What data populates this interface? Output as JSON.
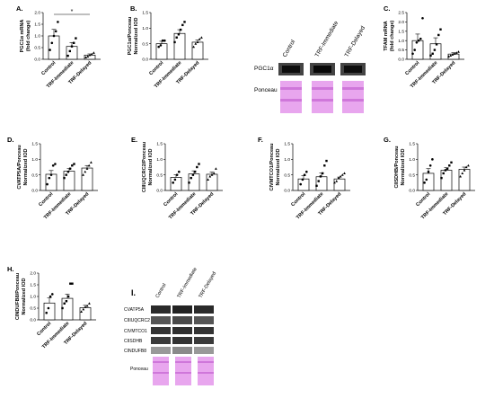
{
  "chart_data": [
    {
      "type": "bar",
      "panel_label": "A.",
      "ylabel_lines": [
        "PGC1α mRNA",
        "(fold change)"
      ],
      "categories": [
        "Control",
        "TRF-Immediate",
        "TRF-Delayed"
      ],
      "values": [
        1.0,
        0.55,
        0.18
      ],
      "errors": [
        0.28,
        0.17,
        0.05
      ],
      "ylim": [
        0,
        2.0
      ],
      "yticks": [
        "0.0",
        "0.5",
        "1.0",
        "1.5",
        "2.0"
      ],
      "points": [
        [
          0.4,
          0.7,
          1.0,
          1.2,
          1.6
        ],
        [
          0.15,
          0.35,
          0.55,
          0.7,
          0.9
        ],
        [
          0.08,
          0.12,
          0.18,
          0.22,
          0.28
        ]
      ],
      "significance": {
        "from": 0,
        "to": 2,
        "label": "*"
      }
    },
    {
      "type": "bar",
      "panel_label": "B.",
      "ylabel_lines": [
        "PGC1α/Ponceau",
        "Normalized IOD"
      ],
      "categories": [
        "Control",
        "TRF-Immediate",
        "TRF-Delayed"
      ],
      "values": [
        0.5,
        0.83,
        0.55
      ],
      "errors": [
        0.08,
        0.12,
        0.07
      ],
      "ylim": [
        0,
        1.5
      ],
      "yticks": [
        "0.0",
        "0.5",
        "1.0",
        "1.5"
      ],
      "points": [
        [
          0.4,
          0.45,
          0.6,
          0.6
        ],
        [
          0.55,
          0.7,
          0.8,
          0.95,
          1.1,
          1.2
        ],
        [
          0.4,
          0.5,
          0.55,
          0.65,
          0.7
        ]
      ]
    },
    {
      "type": "bar",
      "panel_label": "C.",
      "ylabel_lines": [
        "TFAM mRNA",
        "(fold change)"
      ],
      "categories": [
        "Control",
        "TRF-Immediate",
        "TRF-Delayed"
      ],
      "values": [
        1.0,
        0.83,
        0.28
      ],
      "errors": [
        0.35,
        0.32,
        0.07
      ],
      "ylim": [
        0,
        2.5
      ],
      "yticks": [
        "0.0",
        "0.5",
        "1.0",
        "1.5",
        "2.0",
        "2.5"
      ],
      "points": [
        [
          0.3,
          0.5,
          0.9,
          1.0,
          1.1,
          2.2
        ],
        [
          0.2,
          0.3,
          0.5,
          0.8,
          1.3,
          1.6
        ],
        [
          0.15,
          0.2,
          0.25,
          0.3,
          0.35,
          0.4
        ]
      ]
    },
    {
      "type": "bar",
      "panel_label": "D.",
      "ylabel_lines": [
        "CVATP5A/Ponceau",
        "Normalized IOD"
      ],
      "categories": [
        "Control",
        "TRF-Immediate",
        "TRF-Delayed"
      ],
      "values": [
        0.52,
        0.62,
        0.72
      ],
      "errors": [
        0.12,
        0.08,
        0.08
      ],
      "ylim": [
        0,
        1.5
      ],
      "yticks": [
        "0.0",
        "0.5",
        "1.0",
        "1.5"
      ],
      "points": [
        [
          0.2,
          0.4,
          0.5,
          0.8,
          0.85
        ],
        [
          0.4,
          0.5,
          0.6,
          0.7,
          0.8,
          0.85
        ],
        [
          0.5,
          0.6,
          0.7,
          0.8,
          0.9
        ]
      ]
    },
    {
      "type": "bar",
      "panel_label": "E.",
      "ylabel_lines": [
        "CIIIUQCRC2/Ponceau",
        "Normalized IOD"
      ],
      "categories": [
        "Control",
        "TRF-Immediate",
        "TRF-Delayed"
      ],
      "values": [
        0.42,
        0.53,
        0.52
      ],
      "errors": [
        0.08,
        0.1,
        0.07
      ],
      "ylim": [
        0,
        1.5
      ],
      "yticks": [
        "0.0",
        "0.5",
        "1.0",
        "1.5"
      ],
      "points": [
        [
          0.25,
          0.35,
          0.5,
          0.6
        ],
        [
          0.25,
          0.4,
          0.5,
          0.6,
          0.75,
          0.85
        ],
        [
          0.35,
          0.45,
          0.5,
          0.55,
          0.7
        ]
      ]
    },
    {
      "type": "bar",
      "panel_label": "F.",
      "ylabel_lines": [
        "CIVMTCO1/Ponceau",
        "Normalized IOD"
      ],
      "categories": [
        "Control",
        "TRF-Immediate",
        "TRF-Delayed"
      ],
      "values": [
        0.37,
        0.44,
        0.37
      ],
      "errors": [
        0.1,
        0.12,
        0.06
      ],
      "ylim": [
        0,
        1.5
      ],
      "yticks": [
        "0.0",
        "0.5",
        "1.0",
        "1.5"
      ],
      "points": [
        [
          0.2,
          0.35,
          0.5,
          0.6
        ],
        [
          0.15,
          0.3,
          0.45,
          0.55,
          0.8,
          0.95
        ],
        [
          0.25,
          0.3,
          0.4,
          0.45,
          0.5,
          0.55
        ]
      ]
    },
    {
      "type": "bar",
      "panel_label": "G.",
      "ylabel_lines": [
        "CIISDHB/Ponceau",
        "Normalized IOD"
      ],
      "categories": [
        "Control",
        "TRF-Immediate",
        "TRF-Delayed"
      ],
      "values": [
        0.55,
        0.65,
        0.68
      ],
      "errors": [
        0.15,
        0.08,
        0.07
      ],
      "ylim": [
        0,
        1.5
      ],
      "yticks": [
        "0.0",
        "0.5",
        "1.0",
        "1.5"
      ],
      "points": [
        [
          0.25,
          0.35,
          0.6,
          0.8,
          1.0
        ],
        [
          0.4,
          0.55,
          0.65,
          0.7,
          0.8,
          0.9
        ],
        [
          0.45,
          0.55,
          0.65,
          0.75,
          0.8
        ]
      ]
    },
    {
      "type": "bar",
      "panel_label": "H.",
      "ylabel_lines": [
        "CINDUFB8/Ponceau",
        "Normalized IOD"
      ],
      "categories": [
        "Control",
        "TRF-Immediate",
        "TRF-Delayed"
      ],
      "values": [
        0.72,
        0.92,
        0.52
      ],
      "errors": [
        0.22,
        0.18,
        0.1
      ],
      "ylim": [
        0,
        2.0
      ],
      "yticks": [
        "0.0",
        "0.5",
        "1.0",
        "1.5",
        "2.0"
      ],
      "points": [
        [
          0.3,
          0.5,
          1.0,
          1.1
        ],
        [
          0.5,
          0.7,
          0.8,
          1.0,
          1.55,
          1.55
        ],
        [
          0.35,
          0.45,
          0.55,
          0.6,
          0.7
        ]
      ]
    }
  ],
  "blots": {
    "top": {
      "lanes": [
        "Control",
        "TRF-Immediate",
        "TRF-Delayed"
      ],
      "rows": [
        "PGC1α",
        "Ponceau"
      ]
    },
    "bottom": {
      "panel_label": "I.",
      "lanes": [
        "Control",
        "TRF-Immediate",
        "TRF-Delayed"
      ],
      "rows": [
        "CVATP5A",
        "CIIIUQCRC2",
        "CIVMTCO1",
        "CIISDHB",
        "CINDUFB8",
        "Ponceau"
      ]
    }
  },
  "colors": {
    "bar_fill": "#ffffff",
    "stroke": "#000000",
    "ponceau": "#e8a6ee",
    "ponceau_band": "#cf77da"
  }
}
